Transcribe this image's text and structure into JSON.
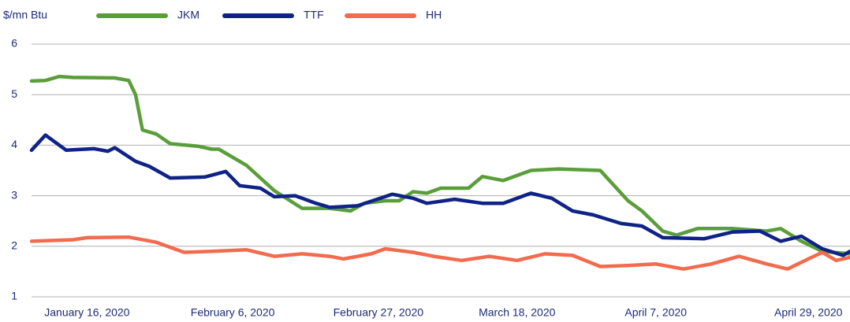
{
  "chart_data": {
    "type": "line",
    "ylabel": "$/mn Btu",
    "xlim": [
      "2020-01-08",
      "2020-05-05"
    ],
    "xticks": [
      {
        "value": "2020-01-16",
        "label": "January 16, 2020"
      },
      {
        "value": "2020-02-06",
        "label": "February 6, 2020"
      },
      {
        "value": "2020-02-27",
        "label": "February 27, 2020"
      },
      {
        "value": "2020-03-18",
        "label": "March 18, 2020"
      },
      {
        "value": "2020-04-07",
        "label": "April 7, 2020"
      },
      {
        "value": "2020-04-29",
        "label": "April 29, 2020"
      }
    ],
    "ylim": [
      1,
      6
    ],
    "yticks": [
      1,
      2,
      3,
      4,
      5,
      6
    ],
    "grid": true,
    "legend": "top",
    "series": [
      {
        "name": "JKM",
        "color": "#5a9e3a",
        "x": [
          "2020-01-08",
          "2020-01-10",
          "2020-01-12",
          "2020-01-14",
          "2020-01-20",
          "2020-01-22",
          "2020-01-23",
          "2020-01-24",
          "2020-01-26",
          "2020-01-28",
          "2020-02-01",
          "2020-02-03",
          "2020-02-04",
          "2020-02-08",
          "2020-02-12",
          "2020-02-16",
          "2020-02-20",
          "2020-02-23",
          "2020-02-25",
          "2020-02-28",
          "2020-03-01",
          "2020-03-03",
          "2020-03-05",
          "2020-03-07",
          "2020-03-11",
          "2020-03-13",
          "2020-03-16",
          "2020-03-20",
          "2020-03-24",
          "2020-03-30",
          "2020-04-03",
          "2020-04-05",
          "2020-04-08",
          "2020-04-10",
          "2020-04-13",
          "2020-04-18",
          "2020-04-23",
          "2020-04-25",
          "2020-04-28",
          "2020-05-01",
          "2020-05-05"
        ],
        "values": [
          5.27,
          5.28,
          5.36,
          5.34,
          5.33,
          5.28,
          5.0,
          4.3,
          4.22,
          4.03,
          3.98,
          3.92,
          3.92,
          3.6,
          3.1,
          2.75,
          2.75,
          2.7,
          2.85,
          2.9,
          2.9,
          3.08,
          3.05,
          3.15,
          3.15,
          3.38,
          3.3,
          3.5,
          3.53,
          3.5,
          2.9,
          2.7,
          2.3,
          2.22,
          2.35,
          2.35,
          2.3,
          2.35,
          2.1,
          1.9,
          1.85
        ]
      },
      {
        "name": "TTF",
        "color": "#0f2387",
        "x": [
          "2020-01-08",
          "2020-01-10",
          "2020-01-13",
          "2020-01-17",
          "2020-01-19",
          "2020-01-20",
          "2020-01-23",
          "2020-01-25",
          "2020-01-28",
          "2020-02-02",
          "2020-02-05",
          "2020-02-07",
          "2020-02-10",
          "2020-02-12",
          "2020-02-15",
          "2020-02-18",
          "2020-02-20",
          "2020-02-24",
          "2020-02-29",
          "2020-03-03",
          "2020-03-05",
          "2020-03-09",
          "2020-03-13",
          "2020-03-16",
          "2020-03-20",
          "2020-03-23",
          "2020-03-26",
          "2020-03-29",
          "2020-04-02",
          "2020-04-05",
          "2020-04-08",
          "2020-04-14",
          "2020-04-18",
          "2020-04-22",
          "2020-04-25",
          "2020-04-28",
          "2020-05-01",
          "2020-05-04",
          "2020-05-05"
        ],
        "values": [
          3.9,
          4.2,
          3.9,
          3.93,
          3.88,
          3.95,
          3.68,
          3.58,
          3.35,
          3.37,
          3.48,
          3.2,
          3.15,
          2.98,
          3.0,
          2.85,
          2.77,
          2.8,
          3.03,
          2.95,
          2.85,
          2.93,
          2.85,
          2.85,
          3.05,
          2.95,
          2.7,
          2.62,
          2.45,
          2.4,
          2.17,
          2.15,
          2.28,
          2.3,
          2.1,
          2.2,
          1.95,
          1.82,
          1.9
        ]
      },
      {
        "name": "HH",
        "color": "#f26b4f",
        "x": [
          "2020-01-08",
          "2020-01-14",
          "2020-01-16",
          "2020-01-22",
          "2020-01-26",
          "2020-01-30",
          "2020-02-03",
          "2020-02-08",
          "2020-02-12",
          "2020-02-16",
          "2020-02-20",
          "2020-02-22",
          "2020-02-26",
          "2020-02-28",
          "2020-03-03",
          "2020-03-06",
          "2020-03-10",
          "2020-03-14",
          "2020-03-18",
          "2020-03-22",
          "2020-03-26",
          "2020-03-30",
          "2020-04-03",
          "2020-04-07",
          "2020-04-11",
          "2020-04-15",
          "2020-04-19",
          "2020-04-23",
          "2020-04-26",
          "2020-04-29",
          "2020-05-01",
          "2020-05-03",
          "2020-05-05"
        ],
        "values": [
          2.1,
          2.13,
          2.17,
          2.18,
          2.08,
          1.88,
          1.9,
          1.93,
          1.8,
          1.85,
          1.8,
          1.75,
          1.85,
          1.95,
          1.88,
          1.8,
          1.72,
          1.8,
          1.72,
          1.85,
          1.82,
          1.6,
          1.62,
          1.65,
          1.55,
          1.65,
          1.8,
          1.65,
          1.55,
          1.75,
          1.88,
          1.72,
          1.78
        ]
      }
    ]
  }
}
